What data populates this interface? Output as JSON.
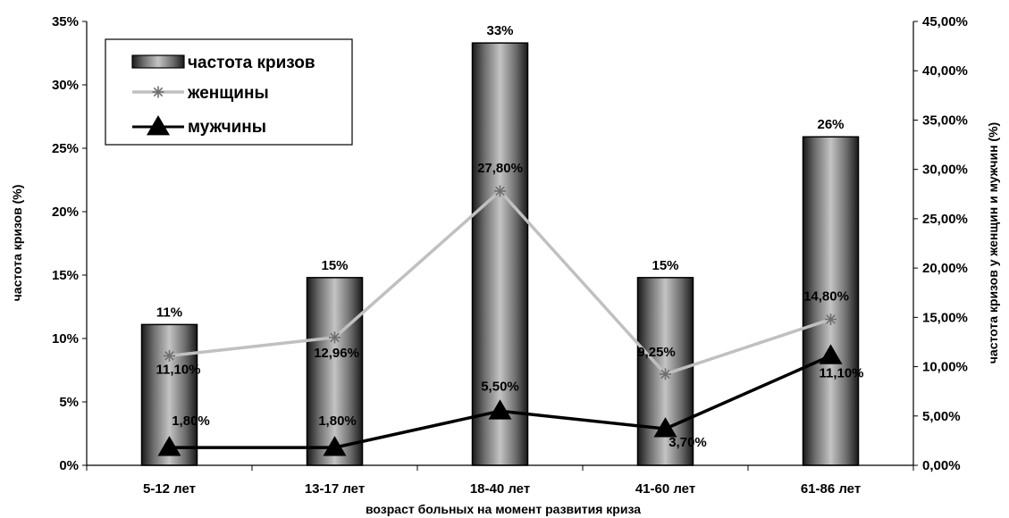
{
  "chart_data": {
    "type": "bar",
    "categories": [
      "5-12 лет",
      "13-17 лет",
      "18-40 лет",
      "41-60 лет",
      "61-86 лет"
    ],
    "xlabel": "возраст больных на момент развития криза",
    "ylabel": "частота кризов (%)",
    "ylabel_right": "частота кризов у женщин и мужчин (%)",
    "ylim": [
      0,
      35
    ],
    "ylim_right": [
      0,
      45
    ],
    "yticks": [
      "0%",
      "5%",
      "10%",
      "15%",
      "20%",
      "25%",
      "30%",
      "35%"
    ],
    "yticks_right": [
      "0,00%",
      "5,00%",
      "10,00%",
      "15,00%",
      "20,00%",
      "25,00%",
      "30,00%",
      "35,00%",
      "40,00%",
      "45,00%"
    ],
    "grid": false,
    "legend_position": "top-left",
    "series": [
      {
        "name": "частота кризов",
        "type": "bar",
        "axis": "left",
        "values": [
          11.1,
          14.8,
          33.3,
          14.8,
          25.9
        ],
        "labels": [
          "11%",
          "15%",
          "33%",
          "15%",
          "26%"
        ],
        "color": "#555555"
      },
      {
        "name": "женщины",
        "type": "line",
        "axis": "right",
        "marker": "asterisk",
        "values": [
          11.1,
          12.96,
          27.8,
          9.25,
          14.8
        ],
        "labels": [
          "11,10%",
          "12,96%",
          "27,80%",
          "9,25%",
          "14,80%"
        ],
        "color": "#c0c0c0"
      },
      {
        "name": "мужчины",
        "type": "line",
        "axis": "right",
        "marker": "triangle",
        "values": [
          1.8,
          1.8,
          5.5,
          3.7,
          11.1
        ],
        "labels": [
          "1,80%",
          "1,80%",
          "5,50%",
          "3,70%",
          "11,10%"
        ],
        "color": "#000000"
      }
    ]
  }
}
